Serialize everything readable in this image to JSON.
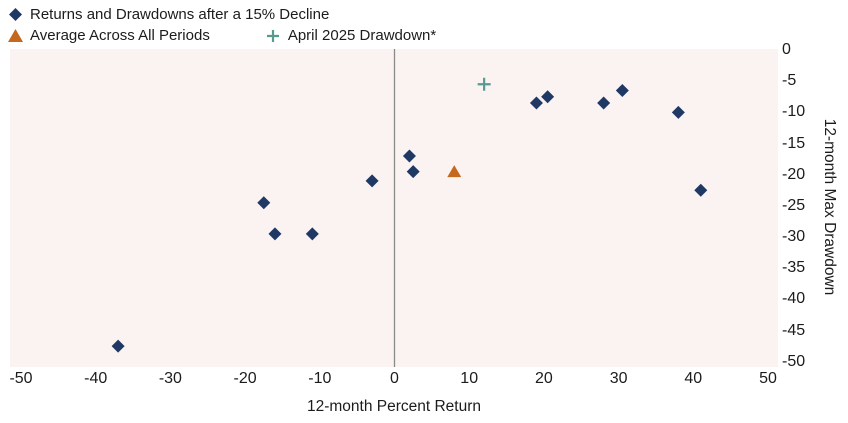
{
  "chart_data": {
    "type": "scatter",
    "xlabel": "12-month Percent Return",
    "ylabel": "12-month Max Drawdown",
    "xlim": [
      -50,
      50
    ],
    "ylim": [
      -50,
      0
    ],
    "x_ticks": [
      -50,
      -40,
      -30,
      -20,
      -10,
      0,
      10,
      20,
      30,
      40,
      50
    ],
    "y_ticks": [
      0,
      -5,
      -10,
      -15,
      -20,
      -25,
      -30,
      -35,
      -40,
      -45,
      -50
    ],
    "grid": false,
    "legend_position": "top-left",
    "plot_background": "#FBF3F1",
    "zero_line": {
      "x": 0,
      "color": "#8A8A8A"
    },
    "series": [
      {
        "name": "Returns and Drawdowns after a 15% Decline",
        "marker": "diamond",
        "color": "#1F3864",
        "points": [
          [
            -37,
            -47.5
          ],
          [
            -17.5,
            -24.5
          ],
          [
            -16,
            -29.5
          ],
          [
            -11,
            -29.5
          ],
          [
            -3,
            -21
          ],
          [
            2,
            -17
          ],
          [
            2.5,
            -19.5
          ],
          [
            19,
            -8.5
          ],
          [
            20.5,
            -7.5
          ],
          [
            28,
            -8.5
          ],
          [
            30.5,
            -6.5
          ],
          [
            38,
            -10
          ],
          [
            41,
            -22.5
          ]
        ]
      },
      {
        "name": "Average Across All Periods",
        "marker": "triangle",
        "color": "#C5681F",
        "points": [
          [
            8,
            -19.5
          ]
        ]
      },
      {
        "name": "April 2025 Drawdown*",
        "marker": "plus",
        "color": "#579B90",
        "points": [
          [
            12,
            -5.5
          ]
        ]
      }
    ]
  }
}
